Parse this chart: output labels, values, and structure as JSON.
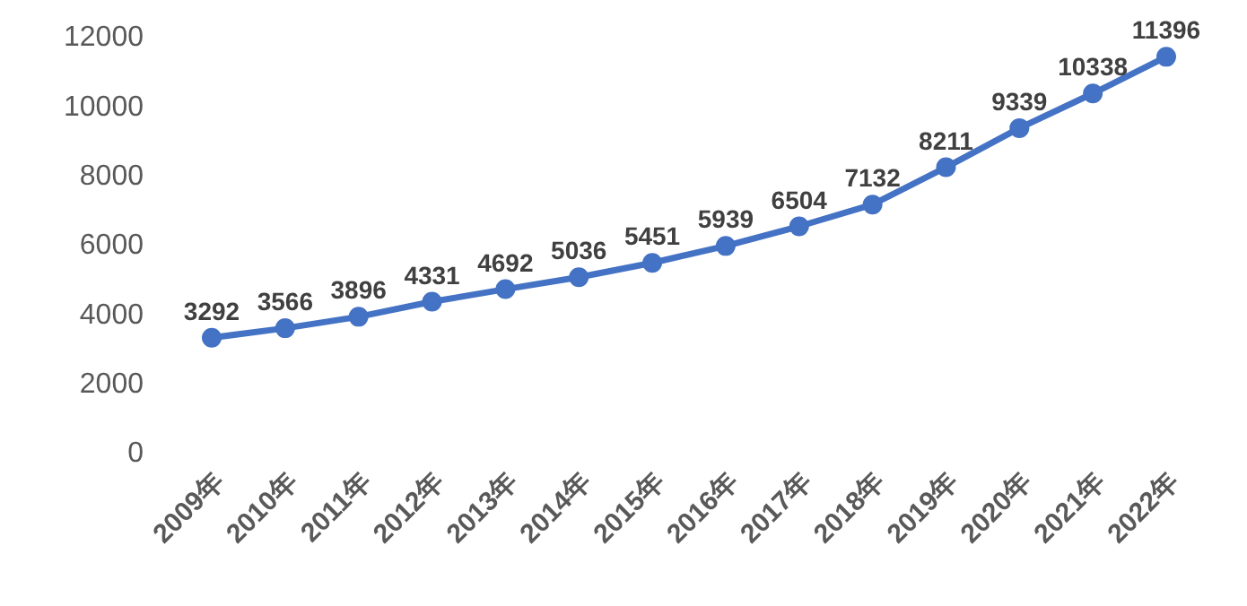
{
  "chart_data": {
    "type": "line",
    "categories": [
      "2009年",
      "2010年",
      "2011年",
      "2012年",
      "2013年",
      "2014年",
      "2015年",
      "2016年",
      "2017年",
      "2018年",
      "2019年",
      "2020年",
      "2021年",
      "2022年"
    ],
    "series": [
      {
        "color": "#4472c4",
        "values": [
          3292,
          3566,
          3896,
          4331,
          4692,
          5036,
          5451,
          5939,
          6504,
          7132,
          8211,
          9339,
          10338,
          11396
        ]
      }
    ],
    "ylim": [
      0,
      12000
    ],
    "yticks": [
      0,
      2000,
      4000,
      6000,
      8000,
      10000,
      12000
    ],
    "grid": false,
    "legend": false,
    "marker": "circle",
    "line_style": "solid",
    "data_labels": true
  }
}
